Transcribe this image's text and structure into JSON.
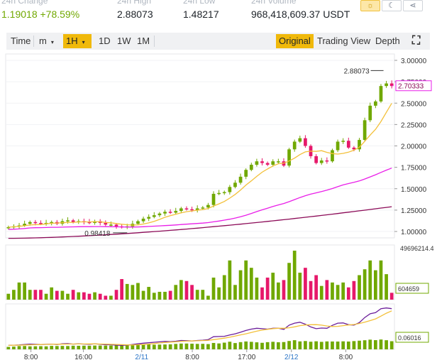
{
  "stats": [
    {
      "label": "24h Change",
      "value": "1.19018 +78.59%"
    },
    {
      "label": "24h High",
      "value": "2.88073"
    },
    {
      "label": "24h Low",
      "value": "1.48217"
    },
    {
      "label": "24h Volume",
      "value": "968,418,609.37 USDT"
    }
  ],
  "toolbar": {
    "time_label": "Time",
    "interval_minutes": "m",
    "interval_hours": "1H",
    "day": "1D",
    "week": "1W",
    "month": "1M",
    "original": "Original",
    "trading_view": "Trading View",
    "depth": "Depth"
  },
  "price_axis": [
    "3.00000",
    "2.75000",
    "2.50000",
    "2.25000",
    "2.00000",
    "1.75000",
    "1.50000",
    "1.25000",
    "1.00000"
  ],
  "time_axis": [
    "8:00",
    "16:00",
    "2/11",
    "8:00",
    "17:00",
    "2/12",
    "8:00"
  ],
  "annotations": {
    "high": "2.88073",
    "low": "0.98418",
    "last_price": "2.70333"
  },
  "volume_axis": {
    "top": "49696214.4",
    "last": "604659"
  },
  "indicator_axis": {
    "last": "0.06016"
  },
  "colors": {
    "up": "#70a800",
    "down": "#e6186a",
    "ma_short": "#f3c03a",
    "ma_mid": "#e91ee8",
    "ma_long": "#8b0a57",
    "accent": "#f0b90b"
  },
  "chart_data": {
    "type": "candlestick",
    "interval": "1H",
    "candles_close": [
      1.05,
      1.06,
      1.07,
      1.09,
      1.11,
      1.1,
      1.09,
      1.1,
      1.11,
      1.09,
      1.12,
      1.13,
      1.11,
      1.12,
      1.11,
      1.1,
      1.12,
      1.1,
      1.08,
      1.08,
      1.06,
      1.05,
      1.06,
      1.09,
      1.12,
      1.15,
      1.17,
      1.19,
      1.21,
      1.23,
      1.22,
      1.24,
      1.27,
      1.26,
      1.25,
      1.27,
      1.28,
      1.31,
      1.44,
      1.45,
      1.46,
      1.52,
      1.57,
      1.64,
      1.72,
      1.78,
      1.82,
      1.8,
      1.78,
      1.82,
      1.82,
      1.77,
      1.96,
      2.05,
      2.09,
      2.0,
      1.88,
      1.8,
      1.83,
      1.82,
      1.95,
      2.05,
      2.06,
      1.98,
      1.96,
      2.07,
      2.3,
      2.47,
      2.52,
      2.7,
      2.73,
      2.7
    ],
    "volume_relative": [
      0.12,
      0.2,
      0.35,
      0.35,
      0.2,
      0.2,
      0.2,
      0.12,
      0.25,
      0.18,
      0.18,
      0.12,
      0.2,
      0.15,
      0.15,
      0.12,
      0.15,
      0.12,
      0.08,
      0.08,
      0.2,
      0.42,
      0.32,
      0.3,
      0.34,
      0.18,
      0.26,
      0.14,
      0.16,
      0.16,
      0.18,
      0.3,
      0.4,
      0.38,
      0.3,
      0.2,
      0.2,
      0.08,
      0.45,
      0.25,
      0.5,
      0.8,
      0.3,
      0.6,
      0.8,
      0.65,
      0.45,
      0.25,
      0.45,
      0.55,
      0.35,
      0.4,
      0.75,
      1.0,
      0.55,
      0.65,
      0.38,
      0.5,
      0.28,
      0.4,
      0.35,
      0.3,
      0.35,
      0.25,
      0.38,
      0.5,
      0.62,
      0.8,
      0.6,
      0.8,
      0.52,
      0.14
    ]
  }
}
